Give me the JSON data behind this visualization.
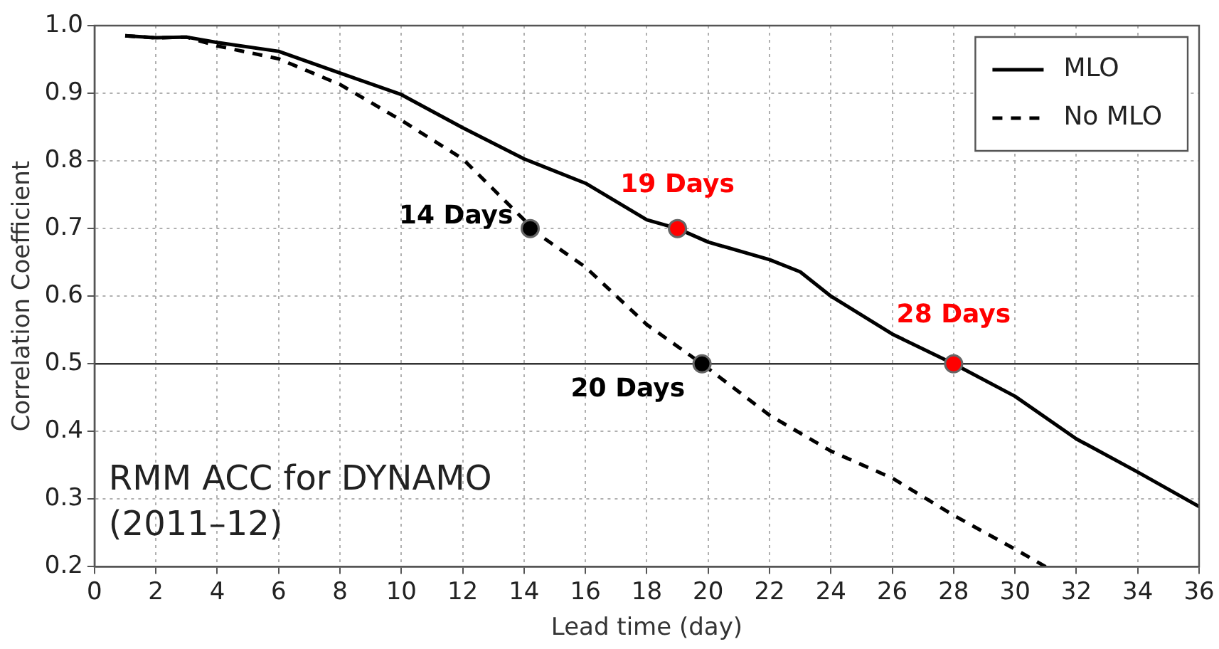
{
  "chart_data": {
    "type": "line",
    "xlabel": "Lead time (day)",
    "ylabel": "Correlation Coefficient",
    "xlim": [
      0,
      36
    ],
    "xticks": [
      0,
      2,
      4,
      6,
      8,
      10,
      12,
      14,
      16,
      18,
      20,
      22,
      24,
      26,
      28,
      30,
      32,
      34,
      36
    ],
    "ylim": [
      0.2,
      1.0
    ],
    "yticks": [
      0.2,
      0.3,
      0.4,
      0.5,
      0.6,
      0.7,
      0.8,
      0.9,
      {
        "value": 1,
        "label": "1.0"
      }
    ],
    "grid": true,
    "legend": "top right",
    "marker": "none",
    "series": [
      {
        "name": "MLO",
        "color": "#000000",
        "line_style": "solid",
        "x": [
          1,
          2,
          3,
          4,
          6,
          8,
          10,
          12,
          14,
          16,
          18,
          19,
          20,
          22,
          23,
          24,
          26,
          28,
          30,
          32,
          34,
          36
        ],
        "values": [
          0.985,
          0.982,
          0.983,
          0.975,
          0.962,
          0.93,
          0.898,
          0.849,
          0.803,
          0.767,
          0.713,
          0.7,
          0.68,
          0.654,
          0.636,
          0.6,
          0.544,
          0.5,
          0.452,
          0.389,
          0.34,
          0.289
        ]
      },
      {
        "name": "No MLO",
        "color": "#000000",
        "line_style": "dashed",
        "x": [
          1,
          2,
          3,
          4,
          6,
          8,
          10,
          12,
          14,
          14.2,
          16,
          18,
          19.8,
          22,
          24,
          26,
          28,
          30,
          31
        ],
        "values": [
          0.985,
          0.982,
          0.983,
          0.97,
          0.951,
          0.913,
          0.86,
          0.803,
          0.713,
          0.7,
          0.643,
          0.558,
          0.5,
          0.424,
          0.371,
          0.331,
          0.276,
          0.226,
          0.2
        ]
      },
      {
        "type": "scatter",
        "color": "#000000",
        "marker": "circle",
        "x": [
          14.2,
          19.8
        ],
        "values": [
          0.7,
          0.5
        ]
      },
      {
        "type": "scatter",
        "color": "#ff0000",
        "marker": "circle",
        "x": [
          19,
          28
        ],
        "values": [
          0.7,
          0.5
        ]
      }
    ],
    "ref_lines": [
      {
        "axis": "y",
        "value": 0.5,
        "color": "#333333"
      }
    ],
    "annotations": [
      {
        "text": "14 Days",
        "x": 14.2,
        "y": 0.7
      },
      {
        "text": "20 Days",
        "x": 19.8,
        "y": 0.5
      },
      {
        "text": "19 Days",
        "x": 19,
        "y": 0.7
      },
      {
        "text": "28 Days",
        "x": 28,
        "y": 0.5
      },
      "RMM ACC for DYNAMO\n(2011–12)"
    ]
  }
}
